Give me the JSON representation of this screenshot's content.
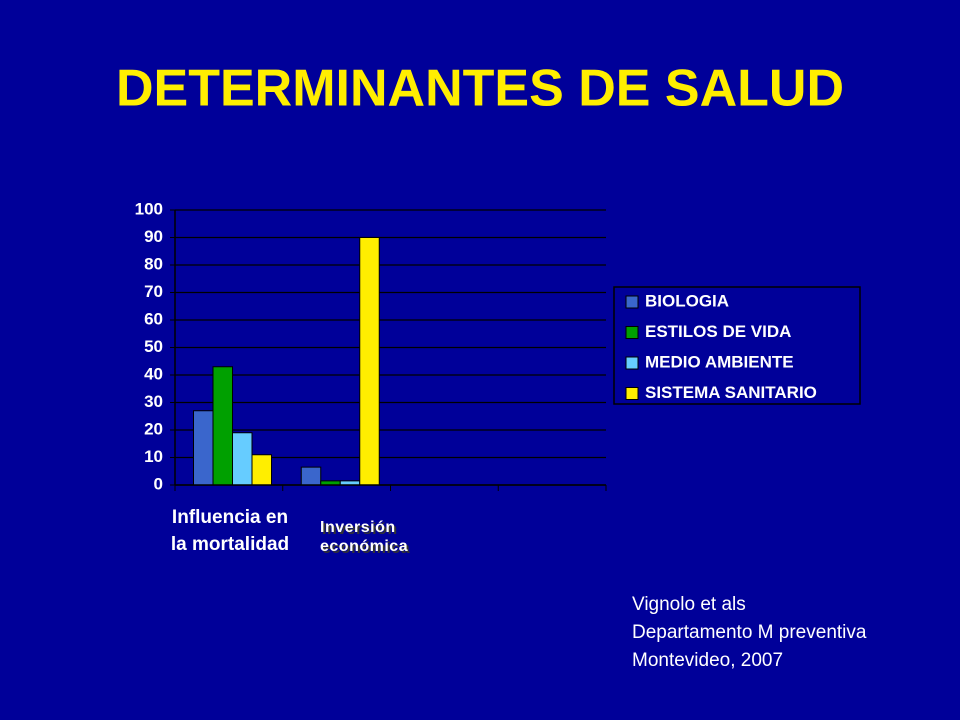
{
  "title": "DETERMINANTES DE SALUD",
  "chart_data": {
    "type": "bar",
    "categories": [
      "Influencia en la mortalidad",
      "Inversión económica",
      null,
      null
    ],
    "series": [
      {
        "name": "BIOLOGIA",
        "color": "#3a66cc",
        "values": [
          27,
          6.5,
          null,
          null
        ]
      },
      {
        "name": "ESTILOS DE VIDA",
        "color": "#00a000",
        "values": [
          43,
          1.5,
          null,
          null
        ]
      },
      {
        "name": "MEDIO AMBIENTE",
        "color": "#66ccff",
        "values": [
          19,
          1.5,
          null,
          null
        ]
      },
      {
        "name": "SISTEMA SANITARIO",
        "color": "#ffee00",
        "values": [
          11,
          90,
          null,
          null
        ]
      }
    ],
    "ylim": [
      0,
      100
    ],
    "yticks": [
      0,
      10,
      20,
      30,
      40,
      50,
      60,
      70,
      80,
      90,
      100
    ],
    "grid": true,
    "legend": "right"
  },
  "source": [
    "Vignolo et als",
    "Departamento M preventiva",
    "Montevideo, 2007"
  ]
}
